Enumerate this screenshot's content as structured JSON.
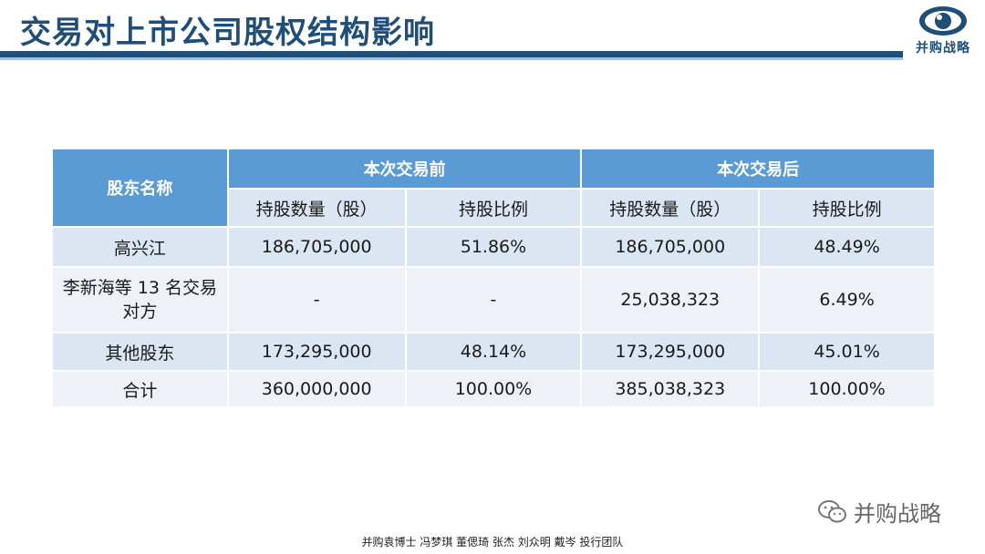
{
  "slide": {
    "title": "交易对上市公司股权结构影响",
    "logo_text": "并购战略",
    "watermark": "并购战略",
    "footer": "并购袁博士 冯梦琪 董偲琦 张杰 刘众明 戴岑 投行团队"
  },
  "table": {
    "col_shareholder": "股东名称",
    "group_before": "本次交易前",
    "group_after": "本次交易后",
    "sub_qty_before": "持股数量（股）",
    "sub_pct_before": "持股比例",
    "sub_qty_after": "持股数量（股）",
    "sub_pct_after": "持股比例",
    "rows": [
      {
        "name": "高兴江",
        "qty_before": "186,705,000",
        "pct_before": "51.86%",
        "qty_after": "186,705,000",
        "pct_after": "48.49%"
      },
      {
        "name": "李新海等 13 名交易对方",
        "qty_before": "-",
        "pct_before": "-",
        "qty_after": "25,038,323",
        "pct_after": "6.49%"
      },
      {
        "name": "其他股东",
        "qty_before": "173,295,000",
        "pct_before": "48.14%",
        "qty_after": "173,295,000",
        "pct_after": "45.01%"
      },
      {
        "name": "合计",
        "qty_before": "360,000,000",
        "pct_before": "100.00%",
        "qty_after": "385,038,323",
        "pct_after": "100.00%"
      }
    ]
  },
  "colors": {
    "title": "#1f4e79",
    "header": "#5b9bd5",
    "row_dark": "#dce6f2",
    "row_light": "#eef2f8"
  }
}
